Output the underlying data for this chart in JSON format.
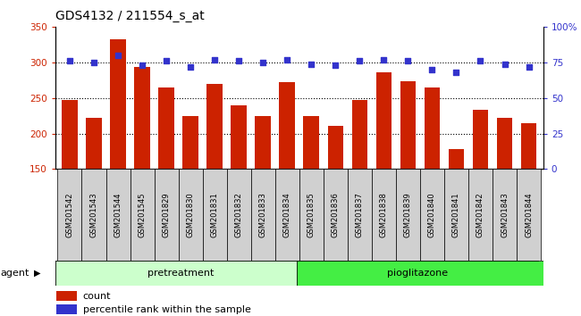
{
  "title": "GDS4132 / 211554_s_at",
  "samples": [
    "GSM201542",
    "GSM201543",
    "GSM201544",
    "GSM201545",
    "GSM201829",
    "GSM201830",
    "GSM201831",
    "GSM201832",
    "GSM201833",
    "GSM201834",
    "GSM201835",
    "GSM201836",
    "GSM201837",
    "GSM201838",
    "GSM201839",
    "GSM201840",
    "GSM201841",
    "GSM201842",
    "GSM201843",
    "GSM201844"
  ],
  "counts": [
    247,
    222,
    332,
    294,
    265,
    225,
    270,
    240,
    225,
    272,
    224,
    211,
    247,
    286,
    273,
    265,
    178,
    233,
    222,
    215
  ],
  "percentiles": [
    76,
    75,
    80,
    73,
    76,
    72,
    77,
    76,
    75,
    77,
    74,
    73,
    76,
    77,
    76,
    70,
    68,
    76,
    74,
    72
  ],
  "pretreatment_count": 10,
  "pioglitazone_count": 10,
  "pretreatment_label": "pretreatment",
  "pioglitazone_label": "pioglitazone",
  "agent_label": "agent",
  "bar_color": "#cc2200",
  "dot_color": "#3333cc",
  "pretreatment_color": "#ccffcc",
  "pioglitazone_color": "#44ee44",
  "label_bg_color": "#d0d0d0",
  "ylim_left": [
    150,
    350
  ],
  "ylim_right": [
    0,
    100
  ],
  "yticks_left": [
    150,
    200,
    250,
    300,
    350
  ],
  "yticks_right": [
    0,
    25,
    50,
    75,
    100
  ],
  "legend_count": "count",
  "legend_percentile": "percentile rank within the sample",
  "title_fontsize": 10,
  "tick_fontsize": 7.5,
  "label_fontsize": 8
}
